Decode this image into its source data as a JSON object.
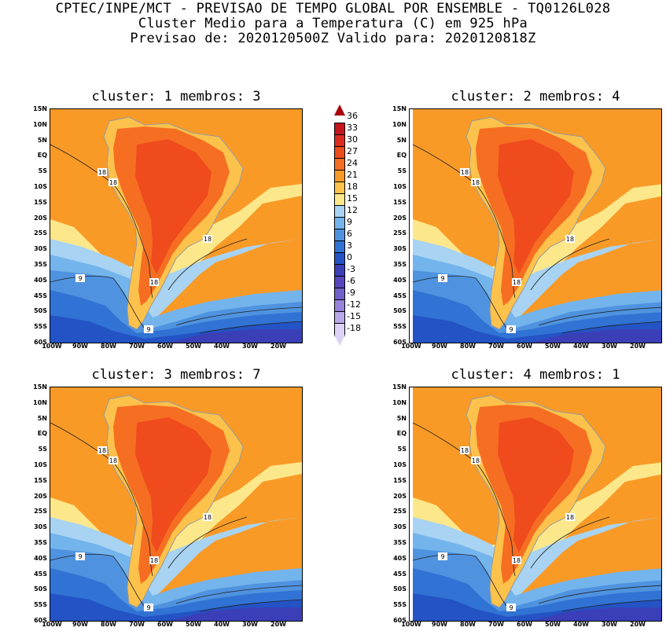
{
  "header": {
    "line1": "CPTEC/INPE/MCT - PREVISAO DE TEMPO GLOBAL POR ENSEMBLE - TQ0126L028",
    "line2": "Cluster Medio para a Temperatura (C) em 925 hPa",
    "line3": "Previsao de: 2020120500Z   Valido para: 2020120818Z"
  },
  "axes": {
    "lat_labels": [
      "15N",
      "10N",
      "5N",
      "EQ",
      "5S",
      "10S",
      "15S",
      "20S",
      "25S",
      "30S",
      "35S",
      "40S",
      "45S",
      "50S",
      "55S",
      "60S"
    ],
    "lon_labels": [
      "100W",
      "90W",
      "80W",
      "70W",
      "60W",
      "50W",
      "40W",
      "30W",
      "20W"
    ]
  },
  "colorbar": {
    "labels": [
      "36",
      "33",
      "30",
      "27",
      "24",
      "21",
      "18",
      "15",
      "12",
      "9",
      "6",
      "3",
      "0",
      "-3",
      "-6",
      "-9",
      "-12",
      "-15",
      "-18"
    ],
    "colors": [
      "#a8000e",
      "#c4161c",
      "#dd2c1f",
      "#ef4b1d",
      "#f66e22",
      "#f99a27",
      "#fcc24b",
      "#fde78b",
      "#a8d3f2",
      "#73b4ec",
      "#4f93e0",
      "#3173d4",
      "#2353c4",
      "#3a3fb8",
      "#5546bd",
      "#7161cc",
      "#9783db",
      "#b9a9ea",
      "#dcd2f6"
    ]
  },
  "contour_labels": [
    "18",
    "9"
  ],
  "panels": [
    {
      "id": "1",
      "title": "cluster: 1   membros: 3"
    },
    {
      "id": "2",
      "title": "cluster: 2   membros: 4"
    },
    {
      "id": "3",
      "title": "cluster: 3   membros: 7"
    },
    {
      "id": "4",
      "title": "cluster: 4   membros: 1"
    }
  ]
}
